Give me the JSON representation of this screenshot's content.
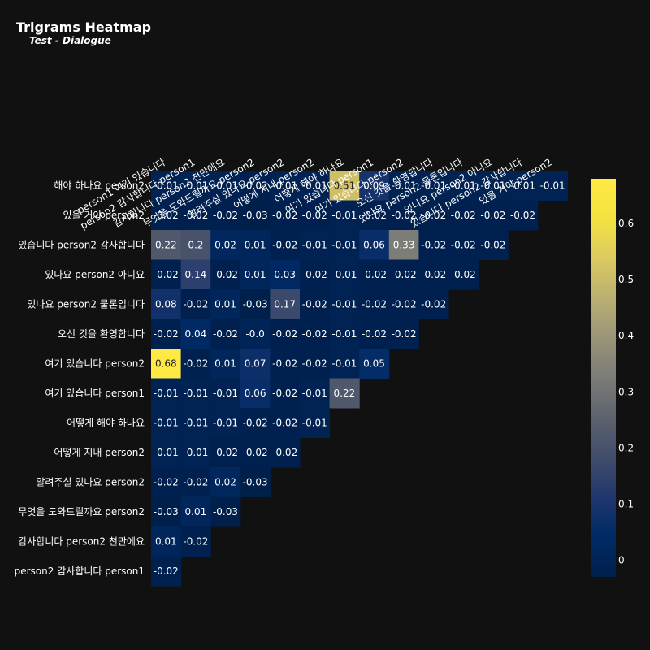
{
  "chart_data": {
    "type": "heatmap",
    "title": "Trigrams Heatmap",
    "subtitle": "Test - Dialogue",
    "x_categories": [
      "person1 여기 있습니다",
      "person2 감사합니다 person1",
      "감사합니다 person2 천만에요",
      "무엇을 도와드릴까요 person2",
      "알려주실 있나요 person2",
      "어떻게 지내 person2",
      "어떻게 해야 하나요",
      "여기 있습니다 person1",
      "여기 있습니다 person2",
      "오신 것을 환영합니다",
      "있나요 person2 물론입니다",
      "있나요 person2 아니요",
      "있습니다 person2 감사합니다",
      "있을 거야 person2"
    ],
    "y_categories": [
      "해야 하나요 person2",
      "있을 거야 person2",
      "있습니다 person2 감사합니다",
      "있나요 person2 아니요",
      "있나요 person2 물론입니다",
      "오신 것을 환영합니다",
      "여기 있습니다 person2",
      "여기 있습니다 person1",
      "어떻게 해야 하나요",
      "어떻게 지내 person2",
      "알려주실 있나요 person2",
      "무엇을 도와드릴까요 person2",
      "감사합니다 person2 천만에요",
      "person2 감사합니다 person1"
    ],
    "values": [
      [
        "-0.01",
        "-0.01",
        "-0.01",
        "-0.02",
        "-0.01",
        "-0.01",
        "0.51",
        "0.09",
        "-0.01",
        "-0.01",
        "-0.01",
        "-0.01",
        "-0.01",
        "-0.01"
      ],
      [
        "-0.02",
        "-0.02",
        "-0.02",
        "-0.03",
        "-0.02",
        "-0.02",
        "-0.01",
        "-0.02",
        "-0.02",
        "-0.02",
        "-0.02",
        "-0.02",
        "-0.02"
      ],
      [
        "0.22",
        "0.2",
        "0.02",
        "0.01",
        "-0.02",
        "-0.01",
        "-0.01",
        "0.06",
        "0.33",
        "-0.02",
        "-0.02",
        "-0.02"
      ],
      [
        "-0.02",
        "0.14",
        "-0.02",
        "0.01",
        "0.03",
        "-0.02",
        "-0.01",
        "-0.02",
        "-0.02",
        "-0.02",
        "-0.02"
      ],
      [
        "0.08",
        "-0.02",
        "0.01",
        "-0.03",
        "0.17",
        "-0.02",
        "-0.01",
        "-0.02",
        "-0.02",
        "-0.02"
      ],
      [
        "-0.02",
        "0.04",
        "-0.02",
        "-0.0",
        "-0.02",
        "-0.02",
        "-0.01",
        "-0.02",
        "-0.02"
      ],
      [
        "0.68",
        "-0.02",
        "0.01",
        "0.07",
        "-0.02",
        "-0.02",
        "-0.01",
        "0.05"
      ],
      [
        "-0.01",
        "-0.01",
        "-0.01",
        "0.06",
        "-0.02",
        "-0.01",
        "0.22"
      ],
      [
        "-0.01",
        "-0.01",
        "-0.01",
        "-0.02",
        "-0.02",
        "-0.01"
      ],
      [
        "-0.01",
        "-0.01",
        "-0.02",
        "-0.02",
        "-0.02"
      ],
      [
        "-0.02",
        "-0.02",
        "0.02",
        "-0.03"
      ],
      [
        "-0.03",
        "0.01",
        "-0.03"
      ],
      [
        "0.01",
        "-0.02"
      ],
      [
        "-0.02"
      ]
    ],
    "colorscale": "cividis",
    "zmin": -0.03,
    "zmax": 0.68,
    "colorbar_ticks": [
      "0",
      "0.1",
      "0.2",
      "0.3",
      "0.4",
      "0.5",
      "0.6"
    ],
    "background": "#111111"
  }
}
